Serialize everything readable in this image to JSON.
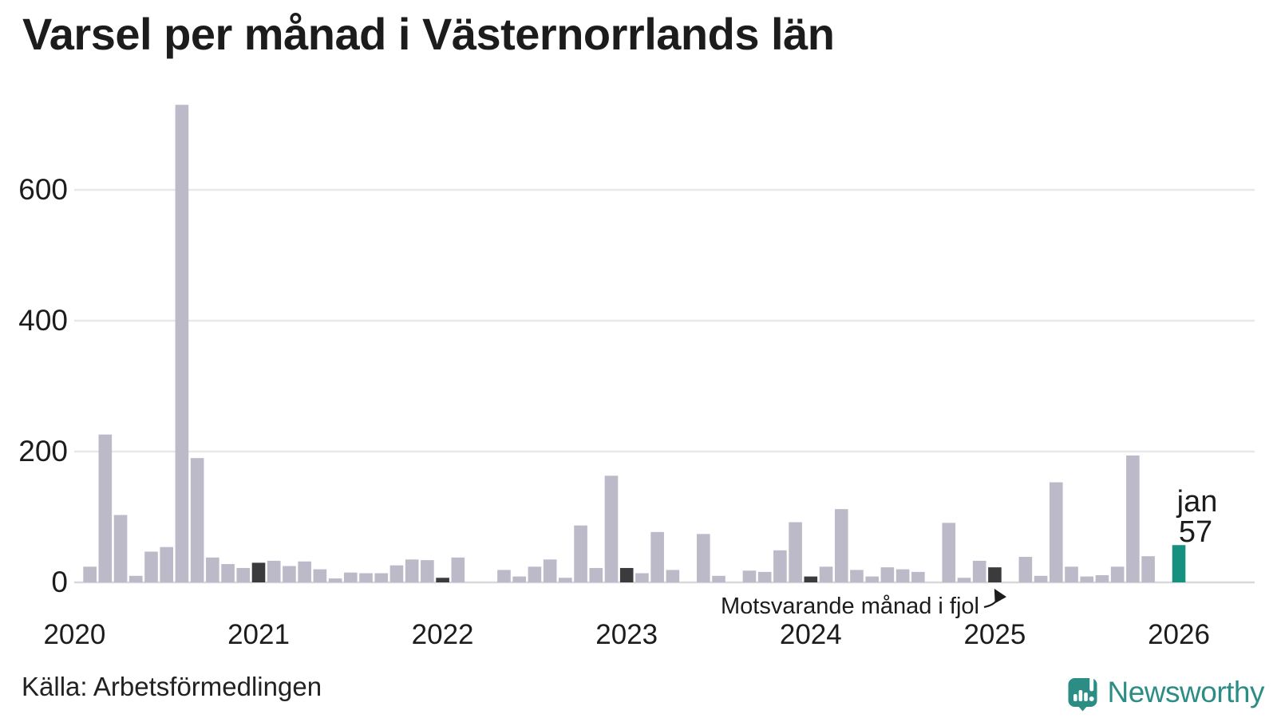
{
  "chart_data": {
    "type": "bar",
    "title": "Varsel per månad i Västernorrlands län",
    "xlabel": "",
    "ylabel": "",
    "y_ticks": [
      0,
      200,
      400,
      600
    ],
    "ylim": [
      0,
      760
    ],
    "grid": "horizontal",
    "frequency": "monthly",
    "years": [
      "2020",
      "2021",
      "2022",
      "2023",
      "2024",
      "2025",
      "2026"
    ],
    "monthly_values": {
      "2020": [
        0,
        24,
        226,
        103,
        10,
        47,
        54,
        730,
        190,
        38,
        28,
        22
      ],
      "2021": [
        30,
        33,
        25,
        32,
        20,
        6,
        15,
        14,
        14,
        26,
        35,
        34
      ],
      "2022": [
        7,
        38,
        0,
        0,
        19,
        9,
        24,
        35,
        7,
        87,
        22,
        163
      ],
      "2023": [
        22,
        14,
        77,
        19,
        0,
        74,
        10,
        0,
        18,
        16,
        49,
        92
      ],
      "2024": [
        9,
        24,
        112,
        19,
        9,
        23,
        20,
        16,
        0,
        91,
        7,
        33
      ],
      "2025": [
        23,
        0,
        39,
        10,
        153,
        24,
        9,
        11,
        24,
        194,
        40,
        0
      ],
      "2026": [
        57
      ]
    },
    "dark_months": [
      "2020-01",
      "2021-01",
      "2022-01",
      "2023-01",
      "2024-01",
      "2025-01"
    ],
    "highlight": {
      "month": "2026-01",
      "value": 57,
      "label_line1": "jan",
      "label_line2": "57"
    },
    "annotation": {
      "text": "Motsvarande månad i fjol",
      "points_to": "2025-01"
    },
    "legend": "none"
  },
  "colors": {
    "bar": "#bcb9c8",
    "bar_same_month": "#3b3b3d",
    "bar_highlight": "#169180",
    "gridline": "#e7e7ec",
    "baseline": "#d8d8de",
    "text": "#1c1c1c",
    "brand": "#2b8d84"
  },
  "footer": {
    "source": "Källa: Arbetsförmedlingen",
    "brand": "Newsworthy"
  }
}
